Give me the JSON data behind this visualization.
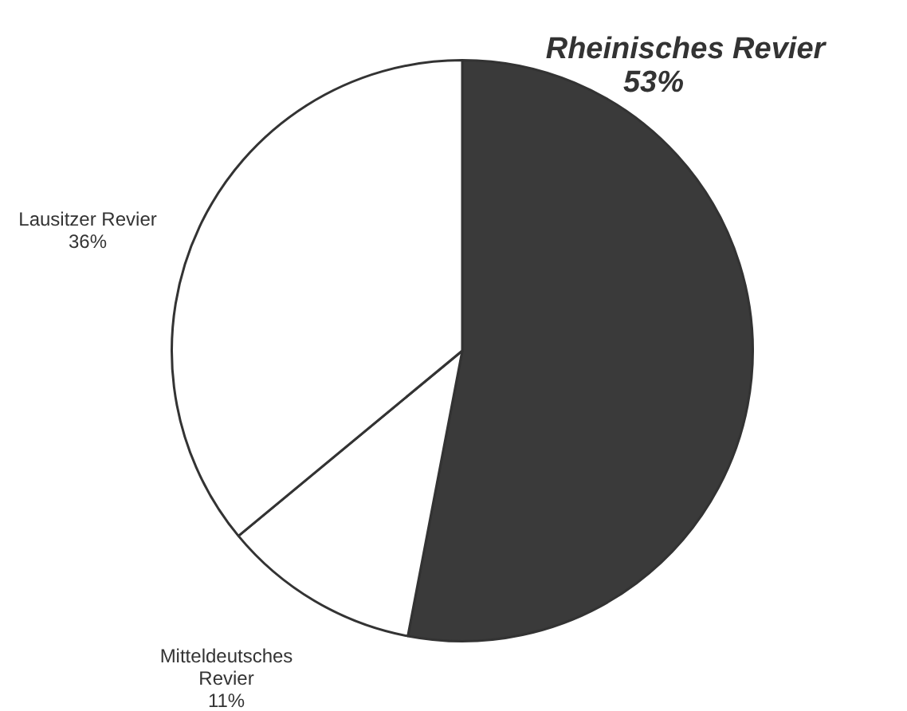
{
  "chart_data": {
    "type": "pie",
    "categories": [
      "Rheinisches Revier",
      "Mitteldeutsches Revier",
      "Lausitzer Revier"
    ],
    "values": [
      53,
      11,
      36
    ],
    "value_labels": [
      "53%",
      "11%",
      "36%"
    ],
    "colors": [
      "#3a3a3a",
      "#ffffff",
      "#ffffff"
    ],
    "legend": false
  }
}
